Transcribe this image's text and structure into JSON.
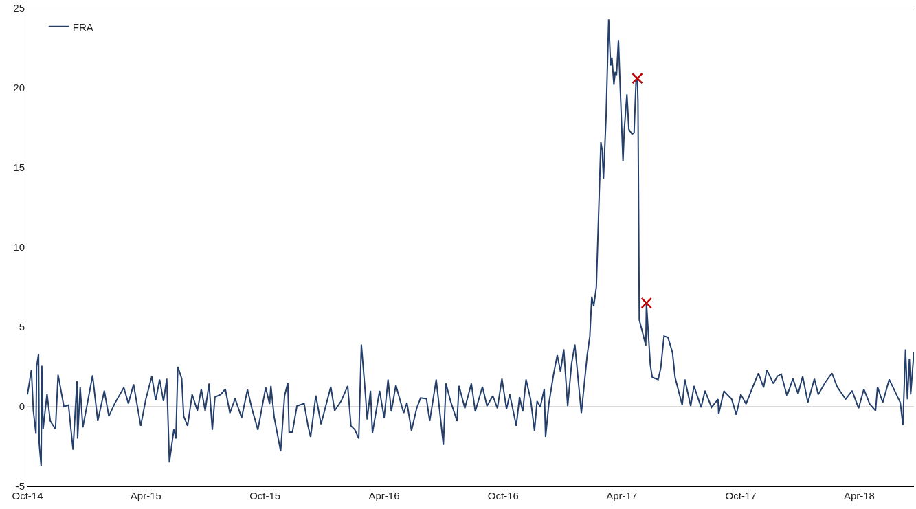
{
  "chart_data": {
    "type": "line",
    "x": [
      "2014-10-01",
      "2014-10-07",
      "2014-10-10",
      "2014-10-14",
      "2014-10-15",
      "2014-10-18",
      "2014-10-19",
      "2014-10-22",
      "2014-10-23",
      "2014-10-25",
      "2014-10-31",
      "2014-11-05",
      "2014-11-13",
      "2014-11-17",
      "2014-11-26",
      "2014-12-03",
      "2014-12-10",
      "2014-12-16",
      "2014-12-17",
      "2014-12-21",
      "2014-12-25",
      "2015-01-01",
      "2015-01-09",
      "2015-01-17",
      "2015-01-27",
      "2015-02-03",
      "2015-02-12",
      "2015-02-26",
      "2015-03-05",
      "2015-03-13",
      "2015-03-24",
      "2015-04-01",
      "2015-04-10",
      "2015-04-16",
      "2015-04-22",
      "2015-04-28",
      "2015-05-03",
      "2015-05-07",
      "2015-05-14",
      "2015-05-17",
      "2015-05-20",
      "2015-05-26",
      "2015-05-29",
      "2015-06-04",
      "2015-06-11",
      "2015-06-19",
      "2015-06-25",
      "2015-07-01",
      "2015-07-07",
      "2015-07-12",
      "2015-07-16",
      "2015-07-25",
      "2015-08-01",
      "2015-08-08",
      "2015-08-16",
      "2015-08-26",
      "2015-09-04",
      "2015-09-11",
      "2015-09-20",
      "2015-10-02",
      "2015-10-08",
      "2015-10-10",
      "2015-10-15",
      "2015-10-25",
      "2015-10-31",
      "2015-11-05",
      "2015-11-07",
      "2015-11-12",
      "2015-11-19",
      "2015-11-30",
      "2015-12-06",
      "2015-12-10",
      "2015-12-18",
      "2015-12-26",
      "2016-01-10",
      "2016-01-16",
      "2016-01-26",
      "2016-02-05",
      "2016-02-10",
      "2016-02-16",
      "2016-02-22",
      "2016-02-26",
      "2016-03-03",
      "2016-03-06",
      "2016-03-11",
      "2016-03-14",
      "2016-03-25",
      "2016-04-01",
      "2016-04-07",
      "2016-04-12",
      "2016-04-19",
      "2016-05-01",
      "2016-05-06",
      "2016-05-13",
      "2016-05-21",
      "2016-05-27",
      "2016-06-05",
      "2016-06-10",
      "2016-06-20",
      "2016-06-25",
      "2016-07-01",
      "2016-07-05",
      "2016-07-12",
      "2016-07-22",
      "2016-07-25",
      "2016-08-03",
      "2016-08-13",
      "2016-08-19",
      "2016-08-30",
      "2016-09-06",
      "2016-09-15",
      "2016-09-22",
      "2016-09-29",
      "2016-10-06",
      "2016-10-11",
      "2016-10-21",
      "2016-10-26",
      "2016-10-31",
      "2016-11-05",
      "2016-11-12",
      "2016-11-18",
      "2016-11-22",
      "2016-11-27",
      "2016-12-03",
      "2016-12-05",
      "2016-12-10",
      "2016-12-17",
      "2016-12-23",
      "2016-12-28",
      "2017-01-02",
      "2017-01-08",
      "2017-01-14",
      "2017-01-19",
      "2017-01-29",
      "2017-02-07",
      "2017-02-11",
      "2017-02-14",
      "2017-02-17",
      "2017-02-21",
      "2017-02-25",
      "2017-02-28",
      "2017-03-02",
      "2017-03-04",
      "2017-03-08",
      "2017-03-12",
      "2017-03-15",
      "2017-03-17",
      "2017-03-20",
      "2017-03-22",
      "2017-03-24",
      "2017-03-27",
      "2017-03-30",
      "2017-04-03",
      "2017-04-05",
      "2017-04-09",
      "2017-04-12",
      "2017-04-17",
      "2017-04-20",
      "2017-04-23",
      "2017-04-25",
      "2017-04-26",
      "2017-04-28",
      "2017-05-03",
      "2017-05-08",
      "2017-05-09",
      "2017-05-15",
      "2017-05-18",
      "2017-05-27",
      "2017-05-31",
      "2017-06-05",
      "2017-06-11",
      "2017-06-18",
      "2017-06-22",
      "2017-07-03",
      "2017-07-07",
      "2017-07-16",
      "2017-07-21",
      "2017-08-01",
      "2017-08-07",
      "2017-08-17",
      "2017-08-27",
      "2017-08-28",
      "2017-09-05",
      "2017-09-17",
      "2017-09-24",
      "2017-10-01",
      "2017-10-09",
      "2017-10-19",
      "2017-10-28",
      "2017-11-05",
      "2017-11-10",
      "2017-11-20",
      "2017-11-26",
      "2017-12-02",
      "2017-12-11",
      "2017-12-20",
      "2017-12-28",
      "2018-01-04",
      "2018-01-12",
      "2018-01-22",
      "2018-01-28",
      "2018-02-08",
      "2018-02-18",
      "2018-02-26",
      "2018-03-11",
      "2018-03-21",
      "2018-03-31",
      "2018-04-08",
      "2018-04-17",
      "2018-04-26",
      "2018-04-29",
      "2018-05-07",
      "2018-05-17",
      "2018-05-23",
      "2018-06-03",
      "2018-06-07",
      "2018-06-11",
      "2018-06-14",
      "2018-06-17",
      "2018-06-19",
      "2018-06-24"
    ],
    "series": [
      {
        "name": "FRA",
        "color": "#243f6b",
        "values": [
          0.77,
          2.3,
          -0.26,
          -1.7,
          2.5,
          3.3,
          -2.3,
          -3.75,
          2.56,
          -1.4,
          0.8,
          -0.9,
          -1.4,
          2.0,
          0,
          0.1,
          -2.7,
          1.6,
          -2.0,
          1.2,
          -1.3,
          0.2,
          1.96,
          -0.9,
          1.0,
          -0.6,
          0.2,
          1.2,
          0.2,
          1.4,
          -1.2,
          0.5,
          1.9,
          0.4,
          1.7,
          0.35,
          1.75,
          -3.5,
          -1.4,
          -2.0,
          2.5,
          1.75,
          -0.6,
          -1.2,
          0.77,
          -0.25,
          1.1,
          -0.25,
          1.45,
          -1.45,
          0.6,
          0.77,
          1.1,
          -0.4,
          0.5,
          -0.7,
          1.07,
          -0.15,
          -1.45,
          1.2,
          0.17,
          1.3,
          -0.64,
          -2.8,
          0.68,
          1.5,
          -1.6,
          -1.6,
          0.04,
          0.2,
          -1.2,
          -1.9,
          0.7,
          -1.1,
          1.25,
          -0.25,
          0.35,
          1.3,
          -1.2,
          -1.45,
          -2.0,
          3.9,
          0.9,
          -0.8,
          1.0,
          -1.65,
          1.0,
          -0.7,
          1.7,
          -0.3,
          1.35,
          -0.4,
          0.25,
          -1.5,
          -0.1,
          0.55,
          0.5,
          -0.9,
          1.7,
          -0.15,
          -2.4,
          1.45,
          0.35,
          -0.9,
          1.3,
          -0.1,
          1.45,
          -0.3,
          1.25,
          0.04,
          0.68,
          -0.1,
          1.75,
          -0.15,
          0.77,
          -1.2,
          0.6,
          -0.3,
          1.7,
          0.47,
          -1.5,
          0.35,
          0,
          1.1,
          -1.9,
          0.17,
          1.96,
          3.24,
          2.2,
          3.6,
          0.04,
          2.7,
          3.9,
          -0.4,
          3.24,
          4.4,
          6.9,
          6.3,
          7.5,
          12.7,
          16.6,
          16.1,
          14.3,
          18.2,
          24.3,
          21.4,
          21.9,
          20.2,
          21.0,
          20.8,
          23.0,
          19.7,
          15.4,
          17.4,
          19.6,
          17.4,
          17.1,
          17.2,
          20.4,
          20.6,
          19.1,
          5.45,
          4.65,
          3.84,
          6.5,
          2.6,
          1.83,
          1.7,
          2.43,
          4.43,
          4.35,
          3.4,
          1.83,
          0.1,
          1.7,
          0.04,
          1.3,
          -0.04,
          1.0,
          -0.04,
          0.47,
          -0.47,
          0.98,
          0.47,
          -0.5,
          0.77,
          0.17,
          1.2,
          2.1,
          1.2,
          2.3,
          1.45,
          1.9,
          2.05,
          0.68,
          1.75,
          0.8,
          1.9,
          0.26,
          1.75,
          0.77,
          1.54,
          2.1,
          1.25,
          0.47,
          1.0,
          -0.1,
          1.1,
          0.17,
          -0.25,
          1.25,
          0.26,
          1.7,
          1.2,
          0.26,
          -1.15,
          3.6,
          0.47,
          3.0,
          0.77,
          3.45
        ]
      },
      {
        "type": "scatter",
        "color": "#c00000",
        "marker": "cross",
        "x": [
          "2017-04-25",
          "2017-05-09"
        ],
        "values": [
          20.6,
          6.5
        ]
      }
    ],
    "xlim": [
      "2014-10-01",
      "2018-06-24"
    ],
    "xticks": [
      {
        "value": "2014-10-01",
        "label": "Oct-14"
      },
      {
        "value": "2015-04-01",
        "label": "Apr-15"
      },
      {
        "value": "2015-10-01",
        "label": "Oct-15"
      },
      {
        "value": "2016-04-01",
        "label": "Apr-16"
      },
      {
        "value": "2016-10-01",
        "label": "Oct-16"
      },
      {
        "value": "2017-04-01",
        "label": "Apr-17"
      },
      {
        "value": "2017-10-01",
        "label": "Oct-17"
      },
      {
        "value": "2018-04-01",
        "label": "Apr-18"
      }
    ],
    "ylim": [
      -5,
      25
    ],
    "yticks": [
      -5,
      0,
      5,
      10,
      15,
      20,
      25
    ],
    "ref_lines": [
      {
        "axis": "y",
        "value": 0,
        "color": "#d9d9d9"
      }
    ],
    "grid": false,
    "legend": "top left",
    "marker": "none",
    "line_style": "solid"
  }
}
